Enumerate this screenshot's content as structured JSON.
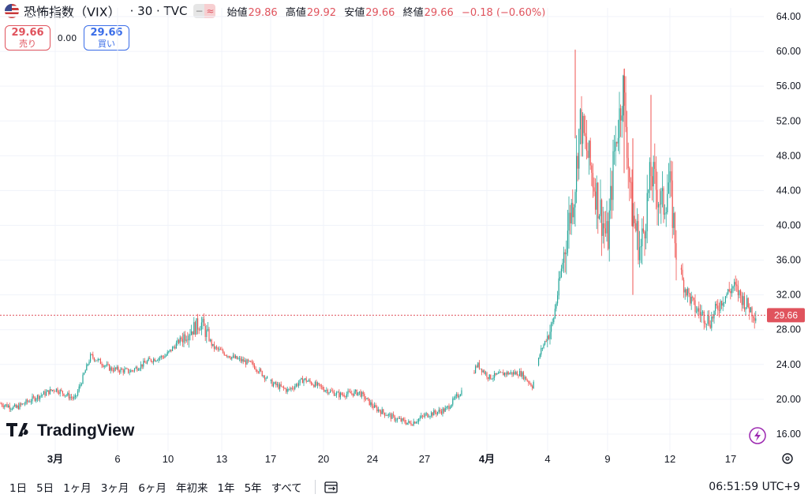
{
  "header": {
    "symbol": "恐怖指数（VIX）",
    "timeframe": "· 30 · TVC",
    "ohlc": [
      {
        "key": "始値",
        "value": "29.86"
      },
      {
        "key": "高値",
        "value": "29.92"
      },
      {
        "key": "安値",
        "value": "29.66"
      },
      {
        "key": "終値",
        "value": "29.66"
      }
    ],
    "change": "−0.18 (−0.60%)",
    "pill_left": "−",
    "pill_right": "≈"
  },
  "trade": {
    "sell_price": "29.66",
    "sell_label": "売り",
    "spread": "0.00",
    "buy_price": "29.66",
    "buy_label": "買い"
  },
  "logo": "TradingView",
  "colors": {
    "up": "#26a69a",
    "down": "#ef5350",
    "price_line": "#e0535d",
    "grid": "#f0f3fa"
  },
  "chart_data": {
    "type": "candlestick",
    "ylim": [
      14,
      65
    ],
    "y_ticks": [
      "64.00",
      "60.00",
      "56.00",
      "52.00",
      "48.00",
      "44.00",
      "40.00",
      "36.00",
      "32.00",
      "28.00",
      "24.00",
      "20.00",
      "16.00"
    ],
    "x_ticks": [
      "3月",
      "6",
      "10",
      "13",
      "17",
      "20",
      "24",
      "27",
      "4月",
      "4",
      "9",
      "12",
      "17"
    ],
    "last_price": "29.66",
    "close_path": [
      [
        0,
        19.5
      ],
      [
        20,
        19.0
      ],
      [
        45,
        20.2
      ],
      [
        70,
        21.2
      ],
      [
        95,
        20.0
      ],
      [
        115,
        25.0
      ],
      [
        140,
        23.5
      ],
      [
        165,
        23.2
      ],
      [
        190,
        24.5
      ],
      [
        210,
        25.0
      ],
      [
        235,
        27.5
      ],
      [
        255,
        28.8
      ],
      [
        270,
        26.0
      ],
      [
        295,
        24.8
      ],
      [
        320,
        24.0
      ],
      [
        345,
        21.8
      ],
      [
        365,
        21.0
      ],
      [
        385,
        22.3
      ],
      [
        410,
        21.2
      ],
      [
        430,
        20.5
      ],
      [
        455,
        20.8
      ],
      [
        475,
        19.0
      ],
      [
        500,
        17.8
      ],
      [
        520,
        17.2
      ],
      [
        540,
        18.2
      ],
      [
        565,
        18.8
      ],
      [
        590,
        21.5
      ],
      [
        605,
        24.0
      ],
      [
        620,
        22.5
      ],
      [
        640,
        23.0
      ],
      [
        660,
        23.0
      ],
      [
        675,
        21.5
      ],
      [
        685,
        25.5
      ],
      [
        700,
        28.5
      ],
      [
        710,
        34.0
      ],
      [
        720,
        40.0
      ],
      [
        728,
        44.0
      ],
      [
        735,
        52.0
      ],
      [
        745,
        48.0
      ],
      [
        755,
        44.0
      ],
      [
        770,
        38.0
      ],
      [
        778,
        48.0
      ],
      [
        790,
        56.0
      ],
      [
        800,
        42.0
      ],
      [
        812,
        37.0
      ],
      [
        825,
        46.0
      ],
      [
        840,
        42.0
      ],
      [
        848,
        45.0
      ],
      [
        857,
        37.5
      ],
      [
        865,
        33.5
      ],
      [
        880,
        30.5
      ],
      [
        900,
        29.0
      ],
      [
        915,
        31.5
      ],
      [
        930,
        33.0
      ],
      [
        945,
        31.0
      ],
      [
        958,
        29.66
      ]
    ],
    "gaps": [
      [
        340,
        343
      ],
      [
        586,
        600
      ],
      [
        677,
        682
      ],
      [
        858,
        862
      ]
    ]
  },
  "bottom": {
    "ranges": [
      "1日",
      "5日",
      "1ヶ月",
      "3ヶ月",
      "6ヶ月",
      "年初来",
      "1年",
      "5年",
      "すべて"
    ],
    "clock": "06:51:59 UTC+9"
  }
}
